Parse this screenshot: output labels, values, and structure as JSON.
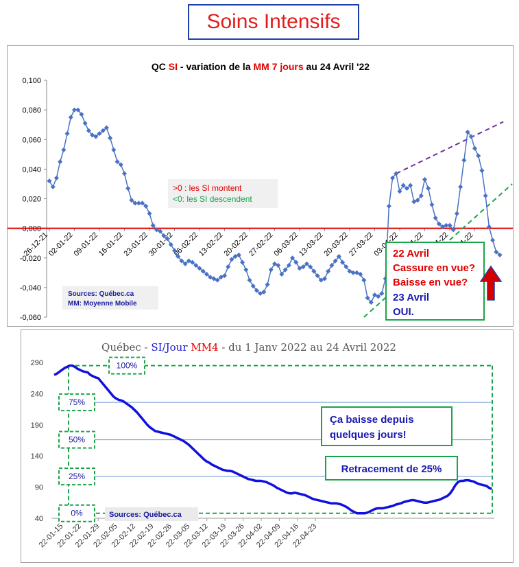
{
  "banner": "Soins Intensifs",
  "chart1": {
    "title": {
      "p1": "QC ",
      "p2": "SI",
      "p3": " -  variation de la ",
      "p4": "MM 7 jours",
      "p5": " au 24 Avril  '22"
    },
    "y_ticks": [
      "0,100",
      "0,080",
      "0,060",
      "0,040",
      "0,020",
      "0,000",
      "-0,020",
      "-0,040",
      "-0,060"
    ],
    "x_ticks": [
      "26-12-21",
      "02-01-22",
      "09-01-22",
      "16-01-22",
      "23-01-22",
      "30-01-22",
      "06-02-22",
      "13-02-22",
      "20-02-22",
      "27-02-22",
      "06-03-22",
      "13-03-22",
      "20-03-22",
      "27-03-22",
      "03-04-22",
      "10-04-22",
      "17-04-22",
      "24-04-22"
    ],
    "note_up": ">0 : les SI montent",
    "note_down": "<0: les SI descendent",
    "sources": "Sources: Québec.ca",
    "mm": "MM: Moyenne Mobile",
    "callout": {
      "l1": "22 Avril",
      "l2": "Cassure en vue?",
      "l3": "Baisse en vue?",
      "l4": "23 Avril",
      "l5": "OUI."
    },
    "colors": {
      "line": "#4a72c4",
      "zero": "#e00000",
      "resistance": "#7030a0",
      "support": "#1aa34a"
    }
  },
  "chart2": {
    "title": {
      "p1": "Québec - ",
      "p2": "SI/Jour",
      "p3": "  ",
      "p4": "MM4",
      "p5": " - du 1 Janv 2022 au 24 Avril 2022"
    },
    "y_ticks": [
      "290",
      "240",
      "190",
      "140",
      "90",
      "40"
    ],
    "x_ticks": [
      "22-01-15",
      "22-01-22",
      "22-01-29",
      "22-02-05",
      "22-02-12",
      "22-02-19",
      "22-02-26",
      "22-03-05",
      "22-03-12",
      "22-03-19",
      "22-03-26",
      "22-04-02",
      "22-04-09",
      "22-04-16",
      "22-04-23"
    ],
    "levels": [
      {
        "label": "100%",
        "value": 285
      },
      {
        "label": "75%",
        "value": 226
      },
      {
        "label": "50%",
        "value": 166
      },
      {
        "label": "25%",
        "value": 107
      },
      {
        "label": "0%",
        "value": 48
      }
    ],
    "box1": {
      "l1": "Ça baisse depuis",
      "l2": "quelques jours!"
    },
    "box2": "Retracement de 25%",
    "sources": "Sources: Québec.ca",
    "colors": {
      "line": "#1010e0",
      "dash": "#1aa34a",
      "level_label": "#1a1aa0"
    }
  },
  "chart_data": [
    {
      "type": "line",
      "title": "QC SI - variation de la MM 7 jours au 24 Avril '22",
      "ylim": [
        -0.06,
        0.1
      ],
      "x_start": "2021-12-26",
      "values": [
        0.032,
        0.028,
        0.034,
        0.045,
        0.053,
        0.064,
        0.075,
        0.08,
        0.08,
        0.077,
        0.071,
        0.066,
        0.063,
        0.062,
        0.064,
        0.066,
        0.068,
        0.061,
        0.053,
        0.045,
        0.043,
        0.037,
        0.027,
        0.019,
        0.017,
        0.017,
        0.017,
        0.015,
        0.01,
        0.002,
        -0.001,
        -0.002,
        -0.005,
        -0.007,
        -0.011,
        -0.015,
        -0.019,
        -0.022,
        -0.024,
        -0.022,
        -0.023,
        -0.025,
        -0.027,
        -0.029,
        -0.031,
        -0.033,
        -0.034,
        -0.035,
        -0.033,
        -0.032,
        -0.026,
        -0.021,
        -0.019,
        -0.018,
        -0.023,
        -0.028,
        -0.035,
        -0.039,
        -0.042,
        -0.044,
        -0.043,
        -0.038,
        -0.028,
        -0.024,
        -0.025,
        -0.031,
        -0.028,
        -0.025,
        -0.02,
        -0.023,
        -0.027,
        -0.026,
        -0.024,
        -0.026,
        -0.029,
        -0.032,
        -0.035,
        -0.034,
        -0.029,
        -0.025,
        -0.022,
        -0.019,
        -0.023,
        -0.026,
        -0.029,
        -0.03,
        -0.03,
        -0.031,
        -0.035,
        -0.047,
        -0.05,
        -0.045,
        -0.046,
        -0.044,
        -0.034,
        0.015,
        0.034,
        0.037,
        0.025,
        0.029,
        0.027,
        0.029,
        0.018,
        0.019,
        0.022,
        0.033,
        0.027,
        0.016,
        0.007,
        0.003,
        0.001,
        0.002,
        0.002,
        -0.001,
        0.01,
        0.028,
        0.046,
        0.065,
        0.062,
        0.054,
        0.049,
        0.039,
        0.022,
        0.001,
        -0.008,
        -0.016,
        -0.018
      ]
    },
    {
      "type": "line",
      "title": "Québec - SI/Jour MM4 - du 1 Janv 2022 au 24 Avril 2022",
      "ylim": [
        40,
        300
      ],
      "x_start": "2022-01-12",
      "values": [
        270,
        272,
        275,
        278,
        281,
        283,
        285,
        285,
        283,
        280,
        278,
        276,
        275,
        274,
        270,
        268,
        266,
        265,
        260,
        255,
        250,
        245,
        240,
        235,
        232,
        230,
        229,
        227,
        224,
        221,
        218,
        214,
        210,
        205,
        200,
        195,
        190,
        186,
        183,
        180,
        179,
        178,
        177,
        176,
        175,
        174,
        172,
        170,
        168,
        166,
        164,
        161,
        158,
        154,
        150,
        146,
        142,
        138,
        134,
        131,
        129,
        126,
        124,
        122,
        120,
        118,
        117,
        116,
        116,
        115,
        113,
        111,
        109,
        107,
        105,
        103,
        102,
        101,
        100,
        100,
        100,
        99,
        98,
        96,
        94,
        92,
        89,
        87,
        85,
        83,
        81,
        80,
        80,
        81,
        80,
        79,
        78,
        77,
        75,
        73,
        71,
        70,
        69,
        68,
        67,
        66,
        65,
        64,
        64,
        64,
        63,
        62,
        60,
        58,
        55,
        52,
        50,
        48,
        48,
        48,
        48,
        49,
        51,
        53,
        55,
        56,
        56,
        56,
        57,
        58,
        59,
        60,
        62,
        63,
        64,
        66,
        67,
        68,
        69,
        69,
        68,
        67,
        66,
        65,
        65,
        66,
        67,
        68,
        69,
        70,
        72,
        74,
        76,
        80,
        86,
        93,
        98,
        100,
        100,
        101,
        101,
        100,
        99,
        97,
        95,
        94,
        93,
        92,
        89,
        87
      ]
    }
  ]
}
